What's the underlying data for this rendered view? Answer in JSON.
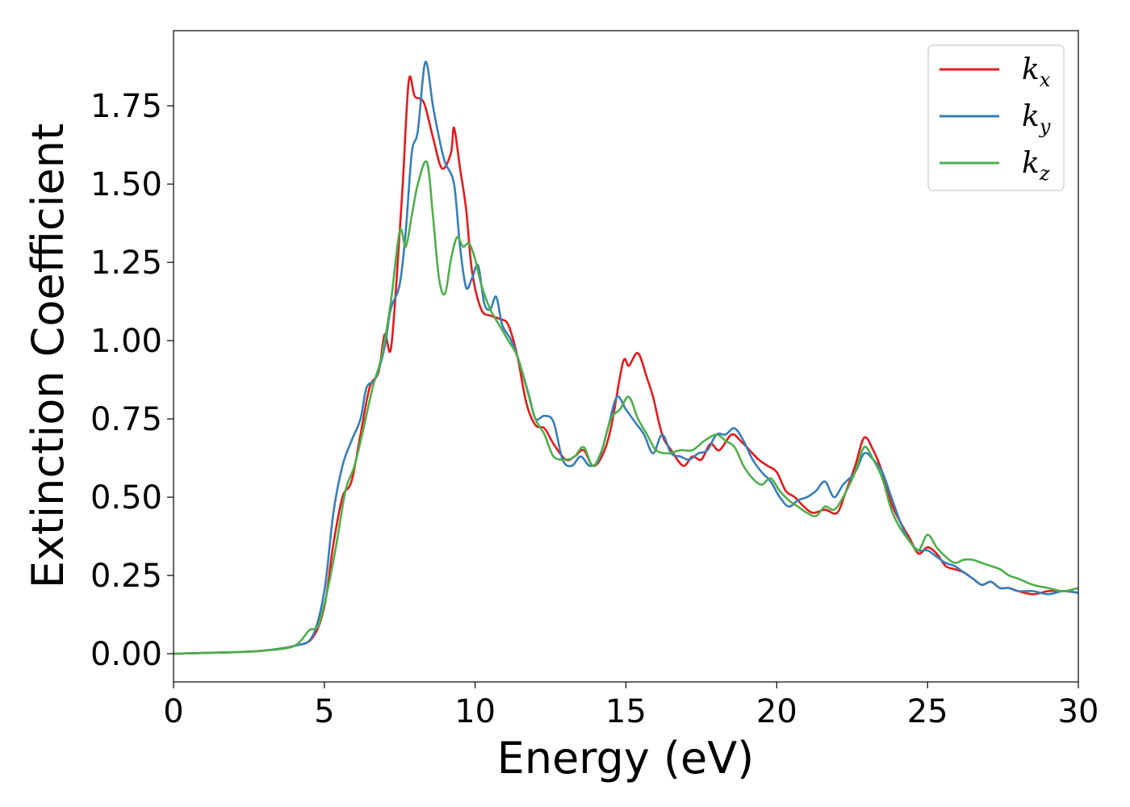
{
  "chart_data": {
    "type": "line",
    "xlabel": "Energy (eV)",
    "ylabel": "Extinction Coefficient",
    "xlim": [
      0,
      30
    ],
    "ylim": [
      -0.09,
      1.99
    ],
    "xticks": [
      0,
      5,
      10,
      15,
      20,
      25,
      30
    ],
    "yticks": [
      0.0,
      0.25,
      0.5,
      0.75,
      1.0,
      1.25,
      1.5,
      1.75
    ],
    "xtick_labels": [
      "0",
      "5",
      "10",
      "15",
      "20",
      "25",
      "30"
    ],
    "ytick_labels": [
      "0.00",
      "0.25",
      "0.50",
      "0.75",
      "1.00",
      "1.25",
      "1.50",
      "1.75"
    ],
    "grid": false,
    "legend_position": "top-right",
    "series": [
      {
        "name": "k",
        "subscript": "x",
        "color": "#e41a1c",
        "points": [
          [
            0,
            0
          ],
          [
            2,
            0.005
          ],
          [
            3,
            0.01
          ],
          [
            4,
            0.025
          ],
          [
            4.6,
            0.05
          ],
          [
            5.0,
            0.15
          ],
          [
            5.3,
            0.35
          ],
          [
            5.6,
            0.5
          ],
          [
            5.9,
            0.55
          ],
          [
            6.2,
            0.7
          ],
          [
            6.5,
            0.85
          ],
          [
            6.8,
            0.9
          ],
          [
            7.0,
            1.02
          ],
          [
            7.2,
            0.97
          ],
          [
            7.4,
            1.2
          ],
          [
            7.6,
            1.5
          ],
          [
            7.8,
            1.83
          ],
          [
            8.0,
            1.78
          ],
          [
            8.3,
            1.76
          ],
          [
            8.6,
            1.65
          ],
          [
            8.9,
            1.55
          ],
          [
            9.2,
            1.6
          ],
          [
            9.3,
            1.68
          ],
          [
            9.5,
            1.55
          ],
          [
            9.7,
            1.42
          ],
          [
            9.9,
            1.22
          ],
          [
            10.2,
            1.1
          ],
          [
            10.5,
            1.08
          ],
          [
            10.8,
            1.07
          ],
          [
            11.1,
            1.05
          ],
          [
            11.4,
            0.95
          ],
          [
            11.7,
            0.8
          ],
          [
            12.0,
            0.73
          ],
          [
            12.3,
            0.72
          ],
          [
            12.6,
            0.67
          ],
          [
            13.0,
            0.62
          ],
          [
            13.3,
            0.63
          ],
          [
            13.6,
            0.65
          ],
          [
            13.9,
            0.6
          ],
          [
            14.2,
            0.63
          ],
          [
            14.5,
            0.72
          ],
          [
            14.9,
            0.93
          ],
          [
            15.1,
            0.92
          ],
          [
            15.4,
            0.96
          ],
          [
            15.7,
            0.88
          ],
          [
            15.9,
            0.82
          ],
          [
            16.2,
            0.7
          ],
          [
            16.5,
            0.65
          ],
          [
            16.9,
            0.6
          ],
          [
            17.2,
            0.63
          ],
          [
            17.5,
            0.62
          ],
          [
            17.8,
            0.67
          ],
          [
            18.1,
            0.65
          ],
          [
            18.5,
            0.7
          ],
          [
            18.8,
            0.68
          ],
          [
            19.1,
            0.65
          ],
          [
            19.4,
            0.62
          ],
          [
            19.7,
            0.6
          ],
          [
            20.0,
            0.58
          ],
          [
            20.3,
            0.52
          ],
          [
            20.6,
            0.5
          ],
          [
            20.9,
            0.47
          ],
          [
            21.2,
            0.45
          ],
          [
            21.6,
            0.46
          ],
          [
            22.0,
            0.45
          ],
          [
            22.3,
            0.52
          ],
          [
            22.6,
            0.6
          ],
          [
            22.9,
            0.69
          ],
          [
            23.2,
            0.65
          ],
          [
            23.5,
            0.58
          ],
          [
            23.8,
            0.48
          ],
          [
            24.1,
            0.42
          ],
          [
            24.4,
            0.37
          ],
          [
            24.7,
            0.32
          ],
          [
            25.0,
            0.34
          ],
          [
            25.3,
            0.32
          ],
          [
            25.6,
            0.28
          ],
          [
            25.9,
            0.27
          ],
          [
            26.2,
            0.26
          ],
          [
            26.5,
            0.24
          ],
          [
            26.8,
            0.22
          ],
          [
            27.1,
            0.23
          ],
          [
            27.4,
            0.21
          ],
          [
            27.7,
            0.21
          ],
          [
            28.0,
            0.2
          ],
          [
            28.5,
            0.19
          ],
          [
            29.0,
            0.2
          ],
          [
            29.5,
            0.2
          ],
          [
            30.0,
            0.195
          ]
        ]
      },
      {
        "name": "k",
        "subscript": "y",
        "color": "#377eb8",
        "points": [
          [
            0,
            0
          ],
          [
            2,
            0.005
          ],
          [
            3,
            0.01
          ],
          [
            4,
            0.025
          ],
          [
            4.6,
            0.055
          ],
          [
            5.0,
            0.2
          ],
          [
            5.3,
            0.45
          ],
          [
            5.6,
            0.6
          ],
          [
            5.9,
            0.68
          ],
          [
            6.2,
            0.75
          ],
          [
            6.4,
            0.85
          ],
          [
            6.7,
            0.88
          ],
          [
            7.0,
            0.98
          ],
          [
            7.2,
            1.1
          ],
          [
            7.5,
            1.18
          ],
          [
            7.7,
            1.35
          ],
          [
            7.9,
            1.6
          ],
          [
            8.1,
            1.67
          ],
          [
            8.35,
            1.89
          ],
          [
            8.6,
            1.75
          ],
          [
            8.8,
            1.65
          ],
          [
            9.0,
            1.57
          ],
          [
            9.3,
            1.5
          ],
          [
            9.5,
            1.3
          ],
          [
            9.7,
            1.17
          ],
          [
            9.9,
            1.2
          ],
          [
            10.1,
            1.24
          ],
          [
            10.3,
            1.12
          ],
          [
            10.5,
            1.1
          ],
          [
            10.7,
            1.14
          ],
          [
            10.9,
            1.05
          ],
          [
            11.2,
            1.0
          ],
          [
            11.5,
            0.92
          ],
          [
            11.8,
            0.82
          ],
          [
            12.0,
            0.75
          ],
          [
            12.3,
            0.76
          ],
          [
            12.6,
            0.74
          ],
          [
            12.9,
            0.62
          ],
          [
            13.2,
            0.6
          ],
          [
            13.5,
            0.63
          ],
          [
            13.8,
            0.6
          ],
          [
            14.1,
            0.62
          ],
          [
            14.4,
            0.72
          ],
          [
            14.7,
            0.82
          ],
          [
            15.0,
            0.78
          ],
          [
            15.3,
            0.74
          ],
          [
            15.6,
            0.7
          ],
          [
            15.9,
            0.64
          ],
          [
            16.2,
            0.7
          ],
          [
            16.5,
            0.64
          ],
          [
            16.8,
            0.63
          ],
          [
            17.1,
            0.62
          ],
          [
            17.4,
            0.64
          ],
          [
            17.7,
            0.65
          ],
          [
            18.0,
            0.7
          ],
          [
            18.3,
            0.7
          ],
          [
            18.6,
            0.72
          ],
          [
            18.9,
            0.68
          ],
          [
            19.2,
            0.62
          ],
          [
            19.5,
            0.58
          ],
          [
            19.8,
            0.55
          ],
          [
            20.1,
            0.5
          ],
          [
            20.4,
            0.47
          ],
          [
            20.7,
            0.49
          ],
          [
            21.0,
            0.5
          ],
          [
            21.3,
            0.52
          ],
          [
            21.6,
            0.55
          ],
          [
            21.9,
            0.5
          ],
          [
            22.2,
            0.54
          ],
          [
            22.6,
            0.58
          ],
          [
            22.9,
            0.64
          ],
          [
            23.2,
            0.62
          ],
          [
            23.5,
            0.58
          ],
          [
            23.8,
            0.5
          ],
          [
            24.1,
            0.42
          ],
          [
            24.4,
            0.36
          ],
          [
            24.7,
            0.33
          ],
          [
            25.0,
            0.33
          ],
          [
            25.3,
            0.31
          ],
          [
            25.6,
            0.29
          ],
          [
            25.9,
            0.28
          ],
          [
            26.2,
            0.26
          ],
          [
            26.5,
            0.24
          ],
          [
            26.8,
            0.22
          ],
          [
            27.1,
            0.23
          ],
          [
            27.4,
            0.21
          ],
          [
            27.7,
            0.21
          ],
          [
            28.0,
            0.2
          ],
          [
            28.5,
            0.2
          ],
          [
            29.0,
            0.19
          ],
          [
            29.5,
            0.2
          ],
          [
            30.0,
            0.195
          ]
        ]
      },
      {
        "name": "k",
        "subscript": "z",
        "color": "#4daf4a",
        "points": [
          [
            0,
            0
          ],
          [
            2,
            0.005
          ],
          [
            3,
            0.01
          ],
          [
            4,
            0.025
          ],
          [
            4.5,
            0.075
          ],
          [
            4.8,
            0.09
          ],
          [
            5.1,
            0.2
          ],
          [
            5.4,
            0.35
          ],
          [
            5.7,
            0.52
          ],
          [
            6.0,
            0.6
          ],
          [
            6.3,
            0.72
          ],
          [
            6.6,
            0.85
          ],
          [
            6.9,
            0.95
          ],
          [
            7.2,
            1.12
          ],
          [
            7.5,
            1.35
          ],
          [
            7.7,
            1.3
          ],
          [
            7.9,
            1.4
          ],
          [
            8.1,
            1.5
          ],
          [
            8.4,
            1.57
          ],
          [
            8.6,
            1.4
          ],
          [
            8.8,
            1.2
          ],
          [
            9.0,
            1.15
          ],
          [
            9.2,
            1.26
          ],
          [
            9.4,
            1.33
          ],
          [
            9.6,
            1.3
          ],
          [
            9.8,
            1.31
          ],
          [
            10.0,
            1.26
          ],
          [
            10.2,
            1.18
          ],
          [
            10.5,
            1.1
          ],
          [
            10.8,
            1.05
          ],
          [
            11.1,
            1.0
          ],
          [
            11.4,
            0.95
          ],
          [
            11.7,
            0.85
          ],
          [
            12.0,
            0.75
          ],
          [
            12.3,
            0.7
          ],
          [
            12.6,
            0.63
          ],
          [
            13.0,
            0.62
          ],
          [
            13.3,
            0.63
          ],
          [
            13.6,
            0.66
          ],
          [
            13.9,
            0.6
          ],
          [
            14.2,
            0.65
          ],
          [
            14.5,
            0.75
          ],
          [
            14.8,
            0.78
          ],
          [
            15.1,
            0.82
          ],
          [
            15.4,
            0.75
          ],
          [
            15.7,
            0.7
          ],
          [
            16.0,
            0.65
          ],
          [
            16.4,
            0.64
          ],
          [
            16.8,
            0.65
          ],
          [
            17.2,
            0.65
          ],
          [
            17.6,
            0.68
          ],
          [
            18.0,
            0.7
          ],
          [
            18.3,
            0.68
          ],
          [
            18.6,
            0.66
          ],
          [
            18.9,
            0.6
          ],
          [
            19.2,
            0.56
          ],
          [
            19.5,
            0.54
          ],
          [
            19.8,
            0.56
          ],
          [
            20.1,
            0.52
          ],
          [
            20.4,
            0.49
          ],
          [
            20.7,
            0.47
          ],
          [
            21.0,
            0.45
          ],
          [
            21.3,
            0.44
          ],
          [
            21.6,
            0.47
          ],
          [
            21.9,
            0.46
          ],
          [
            22.2,
            0.5
          ],
          [
            22.6,
            0.58
          ],
          [
            22.9,
            0.66
          ],
          [
            23.2,
            0.62
          ],
          [
            23.5,
            0.56
          ],
          [
            23.8,
            0.46
          ],
          [
            24.1,
            0.4
          ],
          [
            24.4,
            0.36
          ],
          [
            24.7,
            0.33
          ],
          [
            25.0,
            0.38
          ],
          [
            25.3,
            0.34
          ],
          [
            25.6,
            0.31
          ],
          [
            25.9,
            0.29
          ],
          [
            26.2,
            0.3
          ],
          [
            26.5,
            0.3
          ],
          [
            26.8,
            0.29
          ],
          [
            27.1,
            0.28
          ],
          [
            27.4,
            0.27
          ],
          [
            27.7,
            0.25
          ],
          [
            28.0,
            0.24
          ],
          [
            28.5,
            0.22
          ],
          [
            29.0,
            0.21
          ],
          [
            29.5,
            0.2
          ],
          [
            30.0,
            0.21
          ]
        ]
      }
    ]
  }
}
